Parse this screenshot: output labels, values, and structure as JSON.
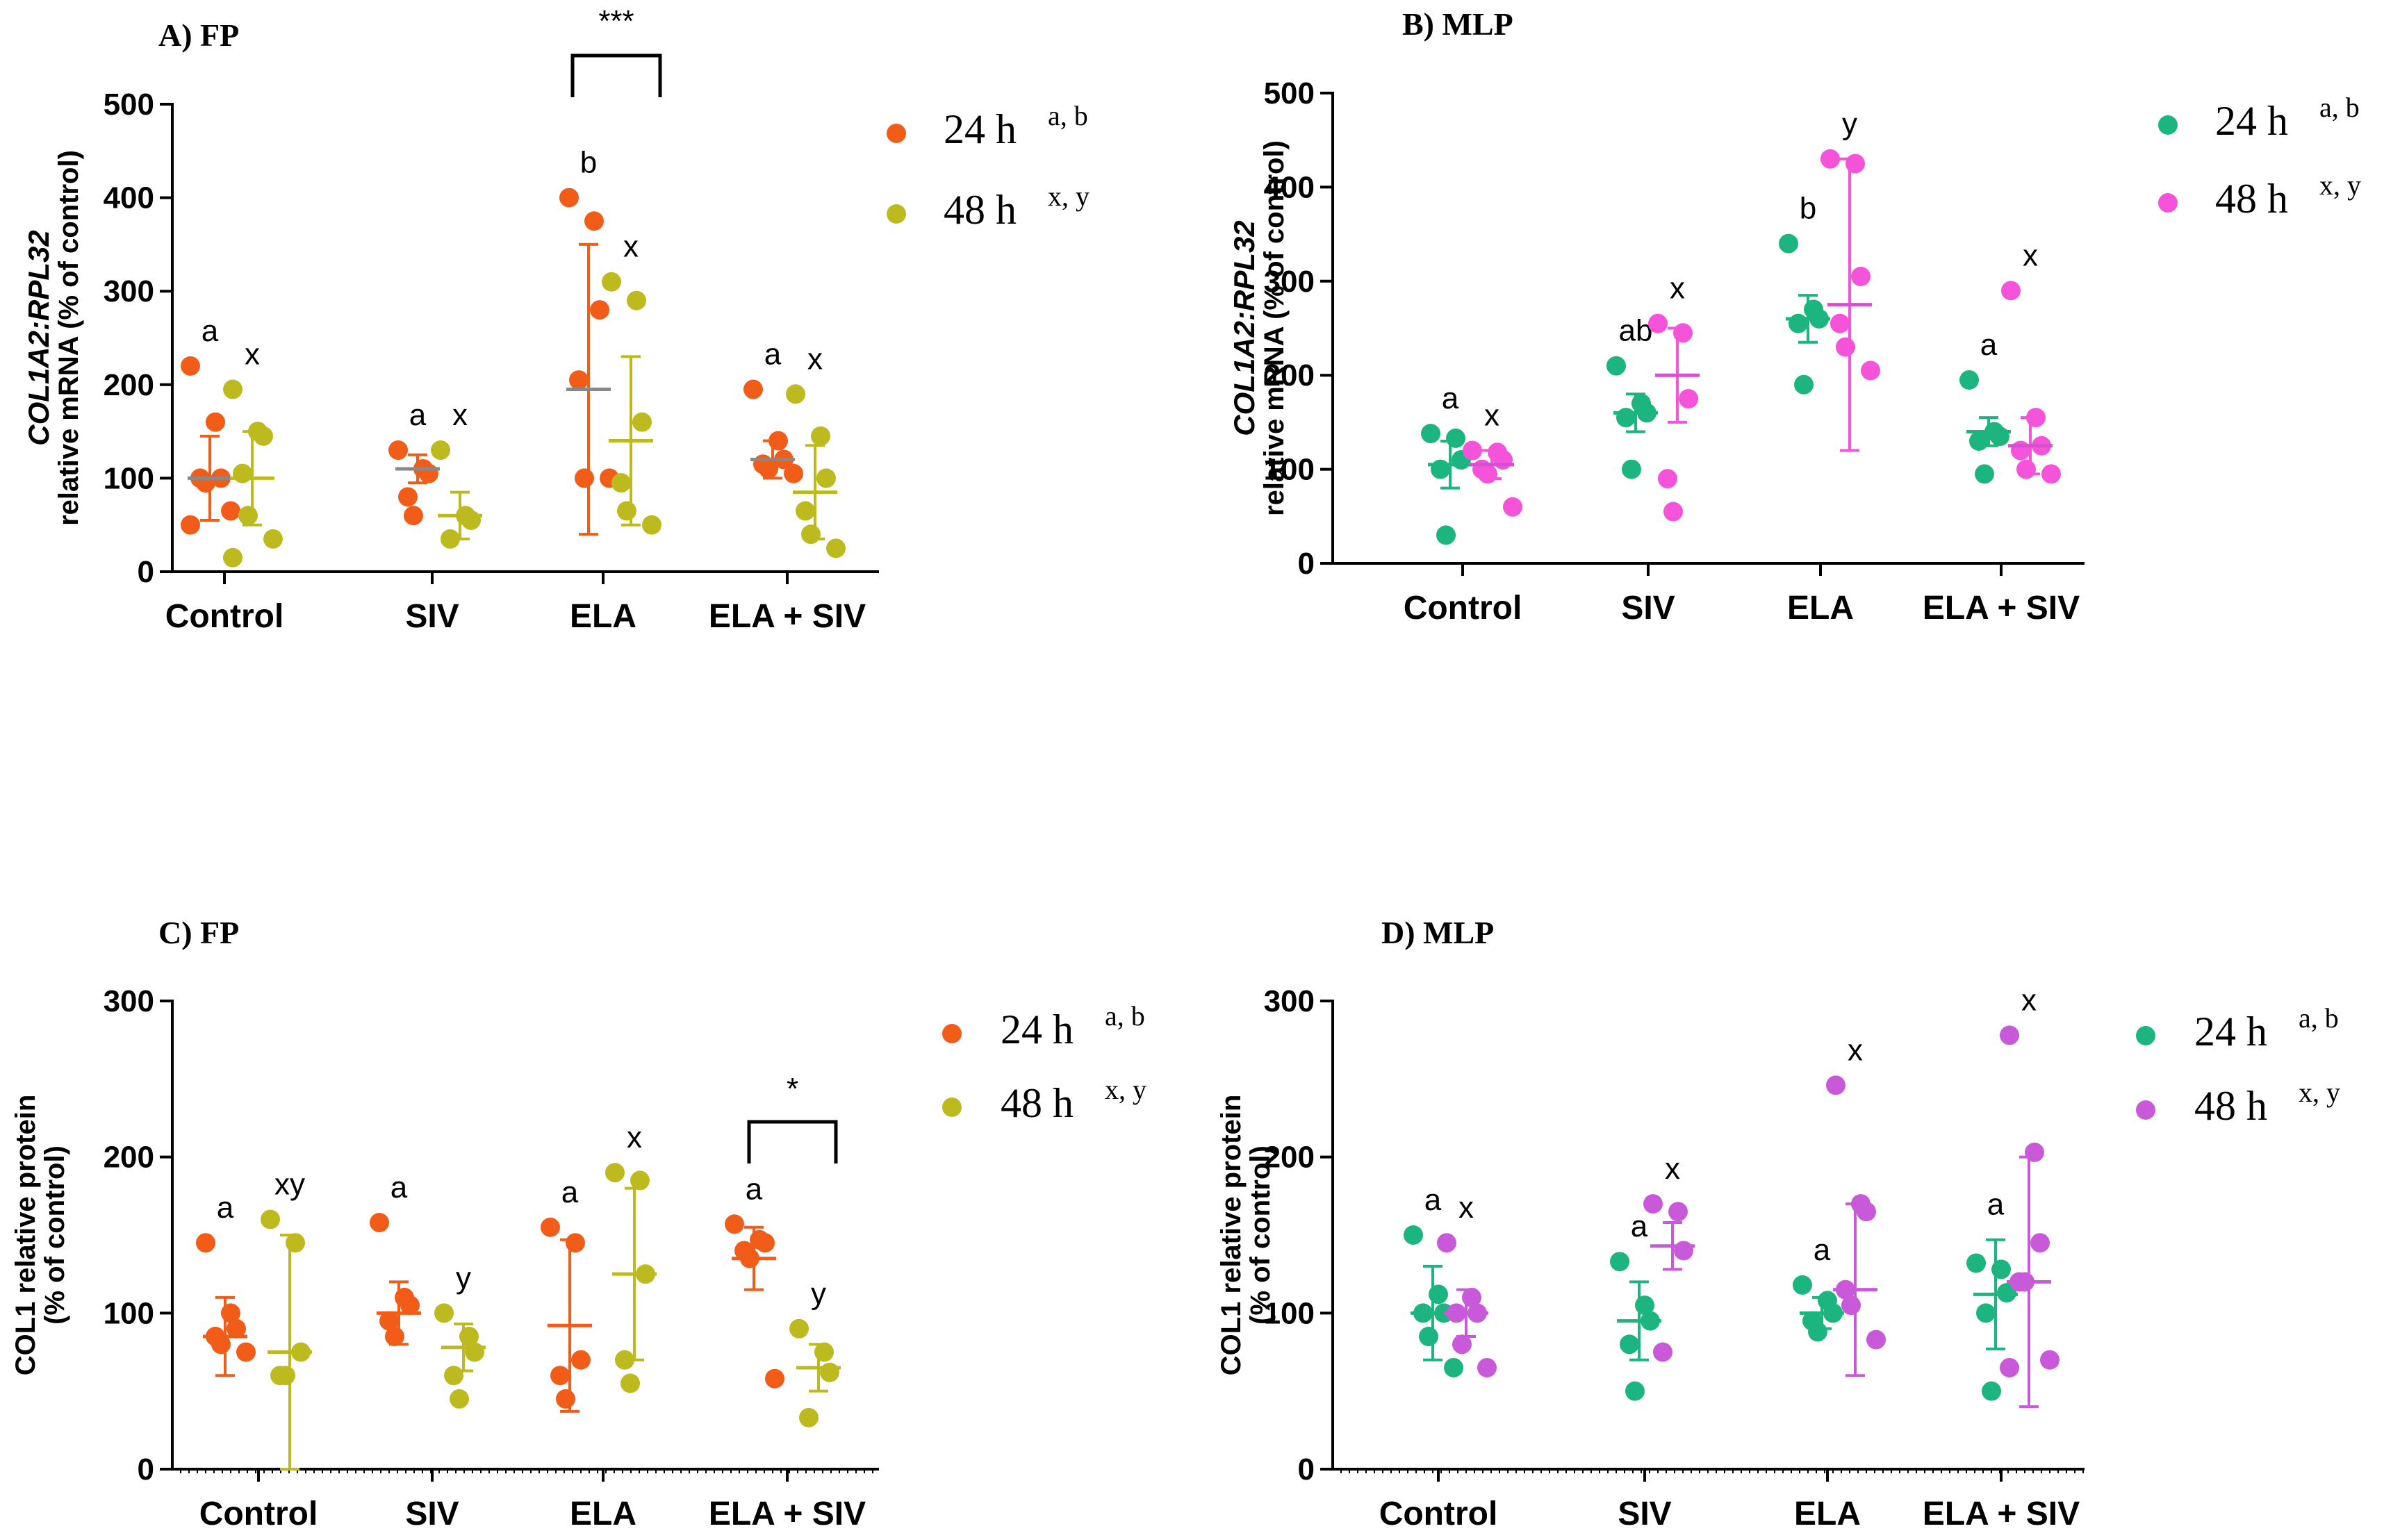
{
  "chart_data": [
    {
      "panel": "A) FP",
      "type": "scatter",
      "title": "A) FP",
      "ylabel_italic": "COL1A2:RPL32",
      "ylabel": "relative mRNA (% of control)",
      "ylim": [
        0,
        500
      ],
      "yticks": [
        0,
        100,
        200,
        300,
        400,
        500
      ],
      "categories": [
        "Control",
        "SIV",
        "ELA",
        "ELA + SIV"
      ],
      "series": [
        {
          "name": "24 h",
          "sup": "a, b",
          "color": "#F25C19",
          "mean_color": "#888888",
          "values": [
            [
              220,
              160,
              100,
              100,
              95,
              65,
              50
            ],
            [
              130,
              110,
              105,
              80,
              60
            ],
            [
              400,
              375,
              280,
              205,
              100,
              100
            ],
            [
              195,
              140,
              120,
              115,
              110,
              105
            ]
          ],
          "mean": [
            100,
            110,
            195,
            120
          ],
          "sd": [
            45,
            15,
            155,
            20
          ],
          "letters": [
            "a",
            "a",
            "b",
            "a"
          ]
        },
        {
          "name": "48 h",
          "sup": "x, y",
          "color": "#BDBA1F",
          "mean_color": "#BDBA1F",
          "values": [
            [
              195,
              150,
              145,
              105,
              60,
              35,
              15
            ],
            [
              130,
              60,
              55,
              35
            ],
            [
              310,
              290,
              160,
              95,
              65,
              50
            ],
            [
              190,
              145,
              100,
              65,
              40,
              25
            ]
          ],
          "mean": [
            100,
            60,
            140,
            85
          ],
          "sd": [
            50,
            25,
            90,
            50
          ],
          "letters": [
            "x",
            "x",
            "x",
            "x"
          ]
        }
      ],
      "significance": [
        {
          "category": "ELA",
          "label": "***"
        }
      ]
    },
    {
      "panel": "B) MLP",
      "type": "scatter",
      "title": "B) MLP",
      "ylabel_italic": "COL1A2:RPL32",
      "ylabel": "relative mRNA (% of control)",
      "ylim": [
        0,
        500
      ],
      "yticks": [
        0,
        100,
        200,
        300,
        400,
        500
      ],
      "categories": [
        "Control",
        "SIV",
        "ELA",
        "ELA + SIV"
      ],
      "series": [
        {
          "name": "24 h",
          "sup": "a, b",
          "color": "#1CB57F",
          "mean_color": "#1CB57F",
          "values": [
            [
              138,
              133,
              110,
              100,
              30
            ],
            [
              210,
              170,
              160,
              155,
              100
            ],
            [
              340,
              270,
              260,
              255,
              190
            ],
            [
              195,
              140,
              135,
              130,
              95
            ]
          ],
          "mean": [
            105,
            160,
            260,
            140
          ],
          "sd": [
            25,
            20,
            25,
            15
          ],
          "letters": [
            "a",
            "ab",
            "b",
            "a"
          ]
        },
        {
          "name": "48 h",
          "sup": "x, y",
          "color": "#F553D9",
          "mean_color": "#D64FD1",
          "values": [
            [
              120,
              118,
              110,
              100,
              95,
              60
            ],
            [
              255,
              245,
              175,
              90,
              55
            ],
            [
              430,
              425,
              305,
              255,
              230,
              205
            ],
            [
              290,
              155,
              125,
              120,
              100,
              95
            ]
          ],
          "mean": [
            105,
            200,
            275,
            125
          ],
          "sd": [
            15,
            50,
            155,
            30
          ],
          "letters": [
            "x",
            "x",
            "y",
            "x"
          ]
        }
      ],
      "significance": []
    },
    {
      "panel": "C) FP",
      "type": "scatter",
      "title": "C) FP",
      "ylabel": "COL1 relative protein",
      "ylabel2": "(% of control)",
      "ylim": [
        0,
        300
      ],
      "yticks": [
        0,
        100,
        200,
        300
      ],
      "categories": [
        "Control",
        "SIV",
        "ELA",
        "ELA + SIV"
      ],
      "series": [
        {
          "name": "24 h",
          "sup": "a, b",
          "color": "#F25C19",
          "mean_color": "#F25C19",
          "values": [
            [
              145,
              100,
              90,
              85,
              80,
              75
            ],
            [
              158,
              110,
              105,
              95,
              85
            ],
            [
              155,
              145,
              70,
              60,
              45
            ],
            [
              157,
              147,
              145,
              140,
              135,
              58
            ]
          ],
          "mean": [
            85,
            100,
            92,
            135
          ],
          "sd": [
            25,
            20,
            55,
            20
          ],
          "letters": [
            "a",
            "a",
            "a",
            "a"
          ]
        },
        {
          "name": "48 h",
          "sup": "x, y",
          "color": "#BDBA1F",
          "mean_color": "#BDBA1F",
          "values": [
            [
              160,
              145,
              75,
              60,
              60
            ],
            [
              100,
              85,
              75,
              60,
              45
            ],
            [
              190,
              185,
              125,
              70,
              55
            ],
            [
              90,
              75,
              62,
              33
            ]
          ],
          "mean": [
            75,
            78,
            125,
            65
          ],
          "sd": [
            75,
            15,
            55,
            15
          ],
          "letters": [
            "xy",
            "y",
            "x",
            "y"
          ]
        }
      ],
      "significance": [
        {
          "category": "ELA + SIV",
          "label": "*"
        }
      ]
    },
    {
      "panel": "D) MLP",
      "type": "scatter",
      "title": "D) MLP",
      "ylabel": "COL1 relative protein",
      "ylabel2": "(% of control)",
      "ylim": [
        0,
        300
      ],
      "yticks": [
        0,
        100,
        200,
        300
      ],
      "categories": [
        "Control",
        "SIV",
        "ELA",
        "ELA + SIV"
      ],
      "series": [
        {
          "name": "24 h",
          "sup": "a, b",
          "color": "#1CB57F",
          "mean_color": "#1CB57F",
          "values": [
            [
              150,
              112,
              100,
              100,
              85,
              65
            ],
            [
              133,
              105,
              95,
              80,
              50
            ],
            [
              118,
              108,
              100,
              95,
              88
            ],
            [
              132,
              128,
              113,
              100,
              50
            ]
          ],
          "mean": [
            100,
            95,
            100,
            112
          ],
          "sd": [
            30,
            25,
            10,
            35
          ],
          "letters": [
            "a",
            "a",
            "a",
            "a"
          ]
        },
        {
          "name": "48 h",
          "sup": "x, y",
          "color": "#C85ADA",
          "mean_color": "#C85ADA",
          "values": [
            [
              145,
              110,
              100,
              100,
              80,
              65
            ],
            [
              170,
              165,
              140,
              75
            ],
            [
              246,
              170,
              165,
              115,
              105,
              83
            ],
            [
              278,
              203,
              145,
              120,
              120,
              70,
              65
            ]
          ],
          "mean": [
            100,
            143,
            115,
            120
          ],
          "sd": [
            15,
            15,
            55,
            80
          ],
          "letters": [
            "x",
            "x",
            "x",
            "x"
          ]
        }
      ],
      "significance": []
    }
  ]
}
